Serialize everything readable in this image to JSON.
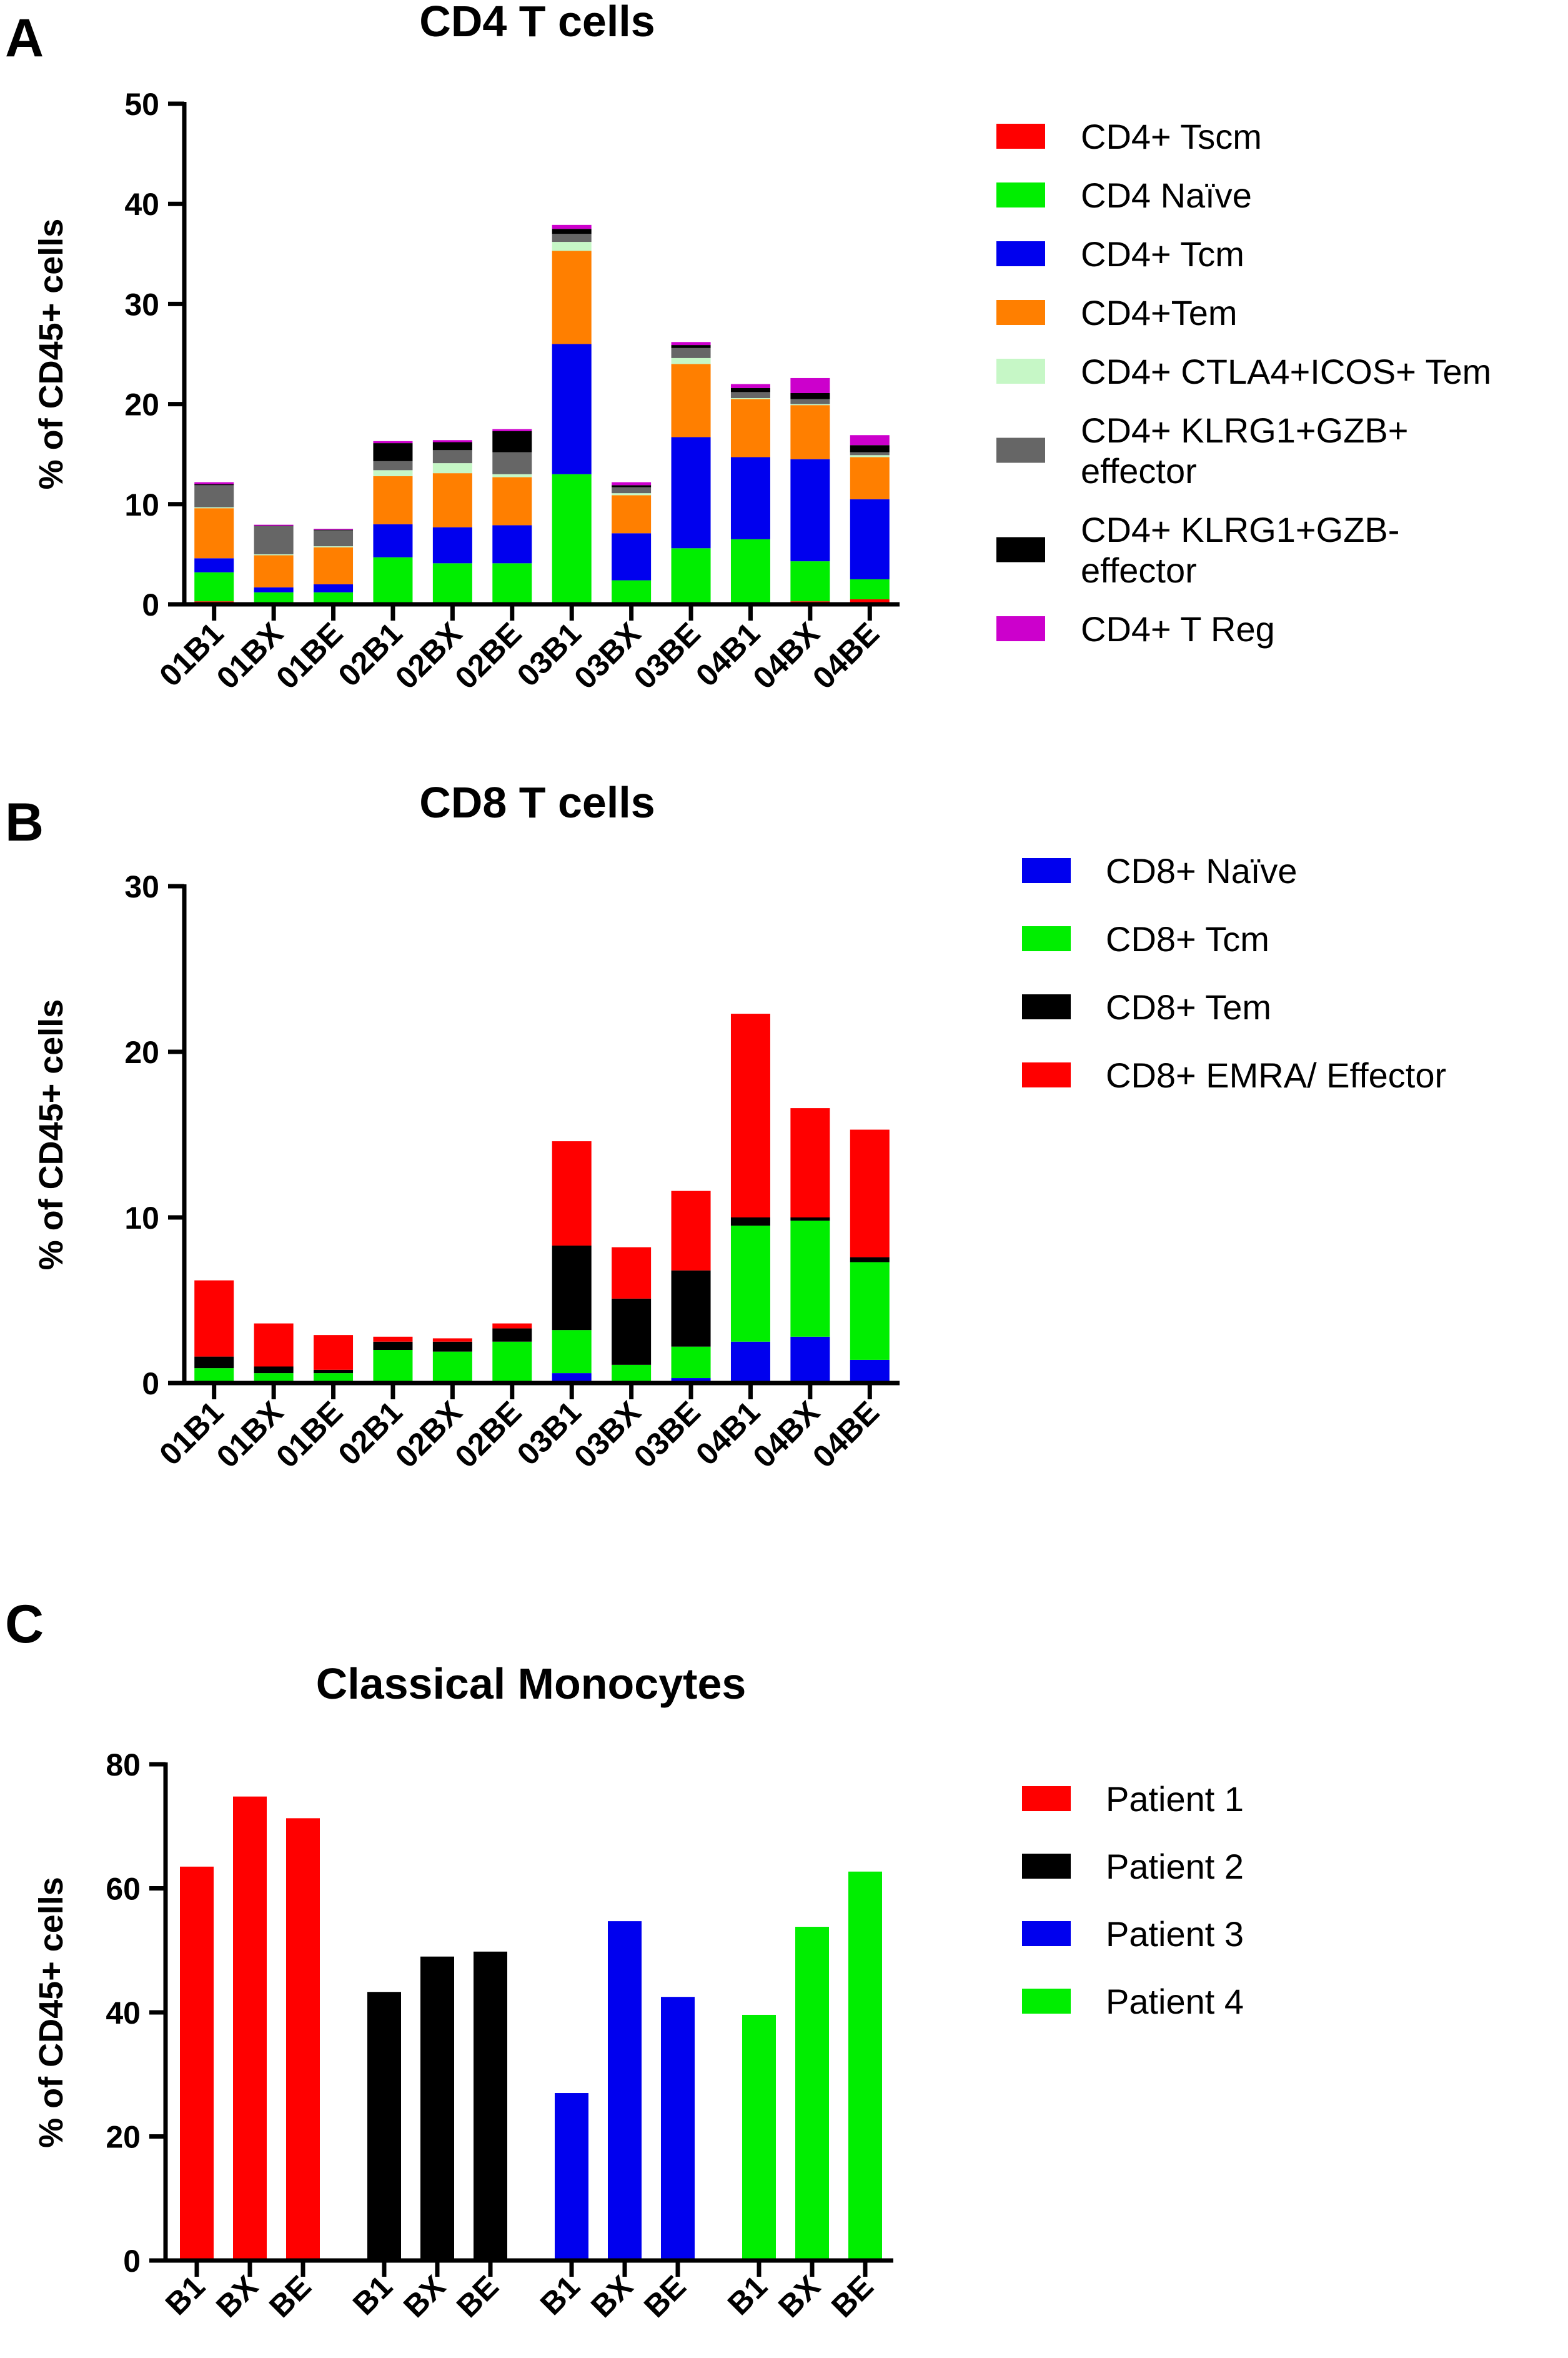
{
  "charts": [
    {
      "panel": "A",
      "type": "stacked-bar",
      "title": "CD4 T cells",
      "ylabel": "% of CD45+ cells",
      "ylim": [
        0,
        50
      ],
      "yticks": [
        0,
        10,
        20,
        30,
        40,
        50
      ],
      "categories": [
        "01B1",
        "01BX",
        "01BE",
        "02B1",
        "02BX",
        "02BE",
        "03B1",
        "03BX",
        "03BE",
        "04B1",
        "04BX",
        "04BE"
      ],
      "series": [
        {
          "name": "CD4+ Tscm",
          "color": "#ff0000",
          "values": [
            0.3,
            0.2,
            0.2,
            0.1,
            0.1,
            0.1,
            0.1,
            0.1,
            0.1,
            0.1,
            0.3,
            0.5
          ]
        },
        {
          "name": "CD4 Naïve",
          "color": "#00ee00",
          "values": [
            2.9,
            1.0,
            1.0,
            4.6,
            4.0,
            4.0,
            12.9,
            2.3,
            5.5,
            6.4,
            4.0,
            2.0
          ]
        },
        {
          "name": "CD4+ Tcm",
          "color": "#0000ee",
          "values": [
            1.4,
            0.5,
            0.8,
            3.3,
            3.6,
            3.8,
            13.0,
            4.7,
            11.1,
            8.2,
            10.2,
            8.0
          ]
        },
        {
          "name": "CD4+Tem",
          "color": "#ff7f00",
          "values": [
            5.0,
            3.2,
            3.7,
            4.8,
            5.4,
            4.8,
            9.3,
            3.8,
            7.3,
            5.8,
            5.4,
            4.2
          ]
        },
        {
          "name": "CD4+ CTLA4+ICOS+ Tem",
          "color": "#c6f7c6",
          "values": [
            0.1,
            0.1,
            0.1,
            0.6,
            1.0,
            0.3,
            0.9,
            0.2,
            0.6,
            0.1,
            0.1,
            0.2
          ]
        },
        {
          "name": "CD4+ KLRG1+GZB+ effector",
          "color": "#666666",
          "values": [
            2.2,
            2.8,
            1.6,
            0.9,
            1.3,
            2.2,
            0.8,
            0.6,
            1.0,
            0.6,
            0.5,
            0.3
          ]
        },
        {
          "name": "CD4+ KLRG1+GZB- effector",
          "color": "#000000",
          "values": [
            0.1,
            0.05,
            0.05,
            1.8,
            0.8,
            2.1,
            0.5,
            0.2,
            0.3,
            0.4,
            0.6,
            0.7
          ]
        },
        {
          "name": "CD4+ T Reg",
          "color": "#cc00cc",
          "values": [
            0.2,
            0.1,
            0.1,
            0.2,
            0.2,
            0.2,
            0.4,
            0.3,
            0.3,
            0.4,
            1.5,
            1.0
          ]
        }
      ],
      "legend": [
        [
          "CD4+ Tscm"
        ],
        [
          "CD4 Naïve"
        ],
        [
          "CD4+ Tcm"
        ],
        [
          "CD4+Tem"
        ],
        [
          "CD4+ CTLA4+ICOS+ Tem"
        ],
        [
          "CD4+ KLRG1+GZB+",
          "effector"
        ],
        [
          "CD4+ KLRG1+GZB-",
          "effector"
        ],
        [
          "CD4+ T Reg"
        ]
      ]
    },
    {
      "panel": "B",
      "type": "stacked-bar",
      "title": "CD8 T cells",
      "ylabel": "% of CD45+ cells",
      "ylim": [
        0,
        30
      ],
      "yticks": [
        0,
        10,
        20,
        30
      ],
      "categories": [
        "01B1",
        "01BX",
        "01BE",
        "02B1",
        "02BX",
        "02BE",
        "03B1",
        "03BX",
        "03BE",
        "04B1",
        "04BX",
        "04BE"
      ],
      "series": [
        {
          "name": "CD8+ Naïve",
          "color": "#0000ee",
          "values": [
            0.1,
            0.1,
            0.1,
            0.1,
            0.1,
            0.1,
            0.6,
            0.1,
            0.3,
            2.5,
            2.8,
            1.4
          ]
        },
        {
          "name": "CD8+ Tcm",
          "color": "#00ee00",
          "values": [
            0.8,
            0.5,
            0.5,
            1.9,
            1.8,
            2.4,
            2.6,
            1.0,
            1.9,
            7.0,
            7.0,
            5.9
          ]
        },
        {
          "name": "CD8+ Tem",
          "color": "#000000",
          "values": [
            0.7,
            0.4,
            0.2,
            0.5,
            0.6,
            0.8,
            5.1,
            4.0,
            4.6,
            0.5,
            0.2,
            0.3
          ]
        },
        {
          "name": "CD8+ EMRA/ Effector",
          "color": "#ff0000",
          "values": [
            4.6,
            2.6,
            2.1,
            0.3,
            0.2,
            0.3,
            6.3,
            3.1,
            4.8,
            12.3,
            6.6,
            7.7
          ]
        }
      ],
      "legend": [
        [
          "CD8+ Naïve"
        ],
        [
          "CD8+ Tcm"
        ],
        [
          "CD8+ Tem"
        ],
        [
          "CD8+ EMRA/ Effector"
        ]
      ]
    },
    {
      "panel": "C",
      "type": "grouped-bar",
      "title": "Classical Monocytes",
      "ylabel": "% of CD45+ cells",
      "ylim": [
        0,
        80
      ],
      "yticks": [
        0,
        20,
        40,
        60,
        80
      ],
      "group_categories": [
        "B1",
        "BX",
        "BE"
      ],
      "series": [
        {
          "name": "Patient 1",
          "color": "#ff0000",
          "values": [
            63.5,
            74.8,
            71.3
          ]
        },
        {
          "name": "Patient 2",
          "color": "#000000",
          "values": [
            43.3,
            49.0,
            49.8
          ]
        },
        {
          "name": "Patient 3",
          "color": "#0000ee",
          "values": [
            27.0,
            54.7,
            42.5
          ]
        },
        {
          "name": "Patient 4",
          "color": "#00ee00",
          "values": [
            39.6,
            53.8,
            62.7
          ]
        }
      ],
      "legend": [
        [
          "Patient 1"
        ],
        [
          "Patient 2"
        ],
        [
          "Patient 3"
        ],
        [
          "Patient 4"
        ]
      ]
    }
  ]
}
